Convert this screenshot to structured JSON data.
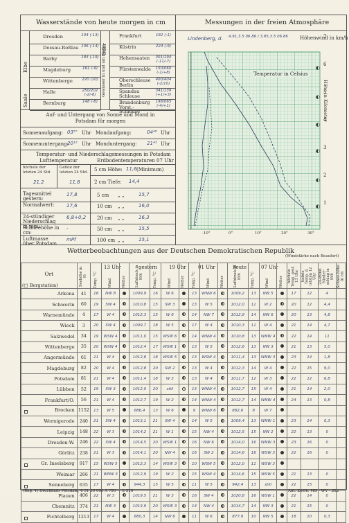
{
  "water": {
    "title": "Wasserstände von heute morgen in cm",
    "elbe_label": "Elbe",
    "saale_label": "Saale",
    "oder_label": "Oder",
    "havel_label": "Gewässer in und um Berlin",
    "left": [
      {
        "name": "Dresden",
        "value": "104 (-13)"
      },
      {
        "name": "Dessau-Roßlau",
        "value": "106 (-14)"
      },
      {
        "name": "Barby",
        "value": "183 (-19)"
      },
      {
        "name": "Magdeburg",
        "value": "161 (-9)"
      },
      {
        "name": "Wittenberge",
        "value": "220 (10)"
      },
      {
        "name": "Halle",
        "value": "250/202 (-2/-8)"
      },
      {
        "name": "Bernburg",
        "value": "148 (-8)"
      }
    ],
    "right": [
      {
        "name": "Frankfurt",
        "value": "182 (-1)"
      },
      {
        "name": "Küstrin",
        "value": "224 (-9)"
      },
      {
        "name": "Hohensaaten",
        "value": "301/194 (-11/-7)"
      },
      {
        "name": "Fürstenwalde",
        "value": "150/060 (-1/+8)"
      },
      {
        "name": "Oberschleuse Berlin",
        "value": "400/404 (-2/10)"
      },
      {
        "name": "Spandau Schleuse",
        "value": "341/139 (+1/+3)"
      },
      {
        "name": "Brandenburg Vorst.-Schleuse",
        "value": "198/065 (-4/+1)"
      }
    ]
  },
  "sun": {
    "title": "Auf- und Untergang von Sonne und Mond in Potsdam für morgen",
    "sunrise_label": "Sonnenaufgang:",
    "sunrise": "03⁵⁷",
    "uhr": "Uhr",
    "moonrise_label": "Mondaufgang:",
    "moonrise": "04⁴⁸",
    "sunset_label": "Sonnenuntergang:",
    "sunset": "20¹²",
    "moonset_label": "Monduntergang:",
    "moonset": "21⁴³"
  },
  "temps": {
    "title": "Temperatur- und Niederschlagsmessungen in Potsdam",
    "air_label": "Lufttemperatur",
    "soil_label": "Erdbodentemperaturen 07 Uhr",
    "max_label": "höchste der letzten 24 Std.",
    "min_label": "Gefste der letzten 24 Std.",
    "height_label": "5 cm Höhe:",
    "height_value": "11,6",
    "min_suffix": "(Minimum)",
    "max_value": "21,2",
    "min_value": "11,8",
    "depth2_label": "2 cm Tiefe:",
    "depth2_value": "14,4",
    "mean_label": "Tagesmittel gestern:",
    "mean_value": "17,8",
    "d5_label": "5 cm",
    "d5_value": "15,7",
    "normal_label": "Normalwert:",
    "normal_value": "17,6",
    "d10_label": "10 cm",
    "d10_value": "16,0",
    "precip_label": "24-stündiger Niederschlag in mm:",
    "precip_value": "6,8+0,2",
    "d20_label": "20 cm",
    "d20_value": "16,3",
    "snow_label": "Schneehöhe in cm:",
    "snow_value": "-",
    "d50_label": "50 cm",
    "d50_value": "15,5",
    "pressure_label": "Luftmasse über Potsdam",
    "pressure_value": "mPf",
    "d100_label": "100 cm",
    "d100_value": "15,1"
  },
  "upper": {
    "title": "Messungen in der freien Atmosphäre",
    "station": "Lindenberg, d.",
    "wind_label": "Höhenwind in km/h",
    "temp_label": "Temperatur in Celsius",
    "height_label": "Höhe in Kilometer",
    "x_ticks": [
      "-10°",
      "0°",
      "10°",
      "20°",
      "30°"
    ],
    "y_ticks": [
      "1",
      "2",
      "3",
      "4",
      "5",
      "6",
      "7"
    ]
  },
  "obs": {
    "title": "Wetterbeobachtungen aus der Deutschen Demokratischen Republik",
    "beaufort": "(Windstärke nach Beaufort)",
    "ort": "Ort",
    "bergstation": "(□ Bergstation)",
    "h13": "13 Uhr",
    "gestern": "gestern",
    "h19": "19 Uhr",
    "h01": "01 Uhr",
    "heute": "heute",
    "h07": "07 Uhr",
    "col_seehoehe": "Seehöhe in m",
    "col_temp": "Temp. °C",
    "col_wind": "Wind",
    "col_wetter": "Wetter",
    "col_luftdruck": "Luftdruck in mm",
    "col_max": "höchste Temp. gest. 13 Uhr",
    "col_min": "tiefste Temp. d. letzten 12 Uhr",
    "col_nied": "24-stünd. Nieder-schlag in mm",
    "col_schnee": "Schnee-höhe in cm",
    "rows": [
      [
        "Arkona",
        "41",
        "16",
        "NW 8",
        "d",
        "1009,9",
        "16",
        "W 6",
        "d",
        "13",
        "WNW 6",
        "h",
        "1009,2",
        "13",
        "NW 5",
        "d",
        "17",
        "12",
        "4",
        ""
      ],
      [
        "Schwerin",
        "60",
        "19",
        "SW 4",
        "h",
        "1010,8",
        "15",
        "SW 3",
        "d",
        "13",
        "W 5",
        "h",
        "1012,0",
        "11",
        "W 2",
        "h",
        "20",
        "12",
        "4,4",
        ""
      ],
      [
        "Warnemünde",
        "4",
        "17",
        "W 4",
        "h",
        "1012,3",
        "15",
        "W 6",
        "h",
        "14",
        "NW 7",
        "h",
        "1012,9",
        "14",
        "NW 6",
        "d",
        "20",
        "13",
        "4,8",
        ""
      ],
      [
        "Wieck",
        "3",
        "20",
        "SW 4",
        "h",
        "1009,7",
        "18",
        "W 5",
        "h",
        "17",
        "W 4",
        "h",
        "1010,3",
        "11",
        "W 4",
        "d",
        "21",
        "14",
        "4,7",
        ""
      ],
      [
        "Salzwedel",
        "34",
        "19",
        "WSW 4",
        "h",
        "1011,0",
        "15",
        "WSW 6",
        "h",
        "14",
        "WNW 4",
        "h",
        "1010,8",
        "13",
        "WNW 4",
        "h",
        "22",
        "14",
        "11",
        ""
      ],
      [
        "Wittenberge",
        "35",
        "20",
        "WSW 4",
        "h",
        "1012,4",
        "17",
        "WSW 1",
        "h",
        "13",
        "W 5",
        "h",
        "1012,6",
        "13",
        "NW 3",
        "d",
        "21",
        "13",
        "5,0",
        ""
      ],
      [
        "Angermünde",
        "61",
        "21",
        "W 4",
        "h",
        "1012,8",
        "18",
        "WSW 5",
        "h",
        "13",
        "WSW 4",
        "h",
        "1011,4",
        "13",
        "WNW 3",
        "d",
        "23",
        "14",
        "1,8",
        ""
      ],
      [
        "Magdeburg",
        "82",
        "20",
        "W 4",
        "h",
        "1012,8",
        "20",
        "SW 2",
        "h",
        "13",
        "W 4",
        "h",
        "1012,3",
        "14",
        "W 4",
        "d",
        "22",
        "15",
        "9,0",
        ""
      ],
      [
        "Potsdam",
        "81",
        "21",
        "W 4",
        "h",
        "1011,4",
        "18",
        "W 3",
        "h",
        "13",
        "W 4",
        "h",
        "1011,7",
        "12",
        "W 3",
        "d",
        "22",
        "12",
        "6,8",
        ""
      ],
      [
        "Lübben",
        "52",
        "19",
        "SW 3",
        "h",
        "1012,0",
        "20",
        "still",
        "r",
        "13",
        "WNW 4",
        "h",
        "1012,7",
        "15",
        "W 4",
        "d",
        "21",
        "14",
        "2,0",
        ""
      ],
      [
        "Frankfurt/O.",
        "56",
        "21",
        "W 4",
        "h",
        "1012,7",
        "19",
        "W 2",
        "h",
        "14",
        "WNW 4",
        "h",
        "1012,7",
        "14",
        "WNW 4",
        "d",
        "24",
        "13",
        "0,8",
        ""
      ],
      [
        "Brocken",
        "1152",
        "13",
        "W 5",
        "d",
        "886,4",
        "13",
        "W 6",
        "d",
        "9",
        "WNW 6",
        "h",
        "882,6",
        "8",
        "W 7",
        "d",
        "",
        "",
        "",
        ""
      ],
      [
        "Wernigerode",
        "240",
        "21",
        "SW 4",
        "h",
        "1013,1",
        "21",
        "SW 4",
        "h",
        "14",
        "W 5",
        "h",
        "1009,4",
        "13",
        "WNW 1",
        "d",
        "23",
        "14",
        "0,3",
        ""
      ],
      [
        "Leipzig",
        "148",
        "22",
        "W 3",
        "h",
        "1014,2",
        "21",
        "W 1",
        "h",
        "15",
        "NW 4",
        "h",
        "1012,5",
        "15",
        "NW 2",
        "d",
        "22",
        "13",
        "0",
        ""
      ],
      [
        "Dresden-W.",
        "246",
        "22",
        "SW 4",
        "h",
        "1014,5",
        "20",
        "WSW 1",
        "h",
        "16",
        "NW 6",
        "h",
        "1014,0",
        "16",
        "WNW 3",
        "d",
        "23",
        "16",
        "0",
        ""
      ],
      [
        "Görlitz",
        "238",
        "21",
        "W 3",
        "h",
        "1014,1",
        "20",
        "NW 4",
        "h",
        "16",
        "SW 2",
        "h",
        "1014,6",
        "16",
        "WSW 3",
        "d",
        "22",
        "16",
        "0",
        ""
      ],
      [
        "Gr. Inselsberg",
        "917",
        "15",
        "WSW 5",
        "d",
        "1012,3",
        "14",
        "WSW 3",
        "h",
        "10",
        "WSW 5",
        "h",
        "1012,0",
        "11",
        "WSW 3",
        "d",
        "",
        "",
        "",
        ""
      ],
      [
        "Weimar",
        "266",
        "21",
        "WNW 3",
        "h",
        "1012,9",
        "19",
        "W 2",
        "h",
        "15",
        "WSW 4",
        "h",
        "1014,6",
        "15",
        "WSW 5",
        "d",
        "21",
        "13",
        "0",
        ""
      ],
      [
        "Sonneberg",
        "635",
        "17",
        "W 4",
        "h",
        "944,3",
        "15",
        "W 5",
        "h",
        "11",
        "W 5",
        "h",
        "942,4",
        "13",
        "still",
        "d",
        "22",
        "15",
        "0",
        ""
      ],
      [
        "Plauen",
        "406",
        "22",
        "W 3",
        "h",
        "1019,5",
        "21",
        "W 3",
        "h",
        "16",
        "SW 4",
        "h",
        "1020,8",
        "16",
        "WSW 1",
        "d",
        "22",
        "14",
        "0",
        ""
      ],
      [
        "Chemnitz",
        "374",
        "21",
        "NW 3",
        "h",
        "1013,9",
        "20",
        "WSW 3",
        "h",
        "14",
        "NW 4",
        "h",
        "1014,7",
        "14",
        "NW 3",
        "d",
        "21",
        "15",
        "0",
        ""
      ],
      [
        "Fichtelberg",
        "1213",
        "17",
        "W 4",
        "d",
        "880,3",
        "14",
        "NW 6",
        "d",
        "11",
        "W 6",
        "h",
        "877,9",
        "10",
        "NW 5",
        "d",
        "18",
        "10",
        "0,3",
        ""
      ]
    ],
    "berg": [
      "Brocken",
      "Gr. Inselsberg",
      "Sonneberg",
      "Fichtelberg"
    ]
  },
  "footer": {
    "left": "(Reg. 4) Druckhaus Potsdam,  6 51 50 000  A 750 — S 510",
    "right": "Ant.-Zeich. MD - WV - 202"
  }
}
